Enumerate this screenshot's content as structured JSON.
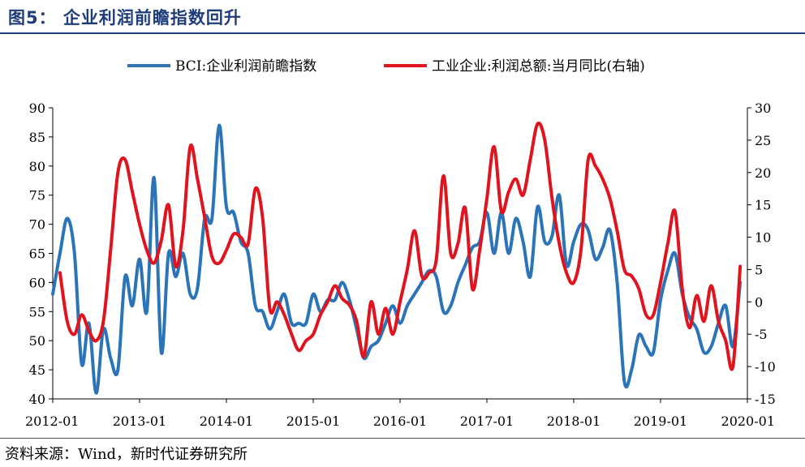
{
  "title": "图5：  企业利润前瞻指数回升",
  "source": "资料来源：Wind，新时代证券研究所",
  "colors": {
    "bci": "#2b74b8",
    "profit": "#e0141e",
    "title": "#1f3d7a"
  },
  "chart_data": {
    "type": "line",
    "legend_position": "top-center",
    "grid": false,
    "x_ticks": [
      "2012-01",
      "2013-01",
      "2014-01",
      "2015-01",
      "2016-01",
      "2017-01",
      "2018-01",
      "2019-01",
      "2020-01"
    ],
    "xlim": [
      "2012-01",
      "2020-01"
    ],
    "y_left": {
      "lim": [
        40,
        90
      ],
      "ticks": [
        40,
        45,
        50,
        55,
        60,
        65,
        70,
        75,
        80,
        85,
        90
      ]
    },
    "y_right": {
      "lim": [
        -15,
        30
      ],
      "ticks": [
        -15,
        -10,
        -5,
        0,
        5,
        10,
        15,
        20,
        25,
        30
      ]
    },
    "series": [
      {
        "name": "BCI:企业利润前瞻指数",
        "axis": "left",
        "color": "#2b74b8",
        "points": [
          [
            "2012-01",
            58
          ],
          [
            "2012-02",
            65
          ],
          [
            "2012-03",
            71
          ],
          [
            "2012-04",
            65
          ],
          [
            "2012-05",
            46
          ],
          [
            "2012-06",
            53
          ],
          [
            "2012-07",
            41
          ],
          [
            "2012-08",
            52
          ],
          [
            "2012-09",
            47
          ],
          [
            "2012-10",
            45
          ],
          [
            "2012-11",
            61
          ],
          [
            "2012-12",
            56
          ],
          [
            "2013-01",
            64
          ],
          [
            "2013-02",
            55
          ],
          [
            "2013-03",
            78
          ],
          [
            "2013-04",
            48
          ],
          [
            "2013-05",
            65
          ],
          [
            "2013-06",
            61
          ],
          [
            "2013-07",
            65
          ],
          [
            "2013-08",
            58
          ],
          [
            "2013-09",
            59
          ],
          [
            "2013-10",
            71
          ],
          [
            "2013-11",
            71
          ],
          [
            "2013-12",
            87
          ],
          [
            "2014-01",
            73
          ],
          [
            "2014-02",
            72
          ],
          [
            "2014-03",
            67
          ],
          [
            "2014-04",
            65
          ],
          [
            "2014-05",
            56
          ],
          [
            "2014-06",
            55
          ],
          [
            "2014-07",
            52
          ],
          [
            "2014-08",
            55
          ],
          [
            "2014-09",
            58
          ],
          [
            "2014-10",
            53
          ],
          [
            "2014-11",
            53
          ],
          [
            "2014-12",
            53
          ],
          [
            "2015-01",
            58
          ],
          [
            "2015-02",
            55
          ],
          [
            "2015-03",
            57
          ],
          [
            "2015-04",
            57
          ],
          [
            "2015-05",
            60
          ],
          [
            "2015-06",
            57
          ],
          [
            "2015-07",
            52
          ],
          [
            "2015-08",
            47
          ],
          [
            "2015-09",
            49
          ],
          [
            "2015-10",
            50
          ],
          [
            "2015-11",
            53
          ],
          [
            "2015-12",
            56
          ],
          [
            "2016-01",
            53
          ],
          [
            "2016-02",
            56
          ],
          [
            "2016-03",
            58
          ],
          [
            "2016-04",
            60
          ],
          [
            "2016-05",
            62
          ],
          [
            "2016-06",
            61
          ],
          [
            "2016-07",
            55
          ],
          [
            "2016-08",
            56
          ],
          [
            "2016-09",
            60
          ],
          [
            "2016-10",
            63
          ],
          [
            "2016-11",
            66
          ],
          [
            "2016-12",
            67
          ],
          [
            "2017-01",
            72
          ],
          [
            "2017-02",
            65
          ],
          [
            "2017-03",
            72
          ],
          [
            "2017-04",
            65
          ],
          [
            "2017-05",
            71
          ],
          [
            "2017-06",
            67
          ],
          [
            "2017-07",
            61
          ],
          [
            "2017-08",
            73
          ],
          [
            "2017-09",
            67
          ],
          [
            "2017-10",
            68
          ],
          [
            "2017-11",
            75
          ],
          [
            "2017-12",
            63
          ],
          [
            "2018-01",
            67
          ],
          [
            "2018-02",
            70
          ],
          [
            "2018-03",
            69
          ],
          [
            "2018-04",
            64
          ],
          [
            "2018-05",
            66
          ],
          [
            "2018-06",
            69
          ],
          [
            "2018-07",
            60
          ],
          [
            "2018-08",
            43
          ],
          [
            "2018-09",
            45
          ],
          [
            "2018-10",
            51
          ],
          [
            "2018-11",
            49
          ],
          [
            "2018-12",
            48
          ],
          [
            "2019-01",
            57
          ],
          [
            "2019-02",
            62
          ],
          [
            "2019-03",
            65
          ],
          [
            "2019-04",
            58
          ],
          [
            "2019-05",
            54
          ],
          [
            "2019-06",
            52
          ],
          [
            "2019-07",
            48
          ],
          [
            "2019-08",
            49
          ],
          [
            "2019-09",
            53
          ],
          [
            "2019-10",
            56
          ],
          [
            "2019-11",
            49
          ],
          [
            "2019-12",
            60
          ]
        ]
      },
      {
        "name": "工业企业:利润总额:当月同比(右轴)",
        "axis": "right",
        "color": "#e0141e",
        "points": [
          [
            "2012-02",
            4.5
          ],
          [
            "2012-03",
            -3
          ],
          [
            "2012-04",
            -5
          ],
          [
            "2012-05",
            -2
          ],
          [
            "2012-06",
            -4.5
          ],
          [
            "2012-07",
            -6
          ],
          [
            "2012-08",
            -3
          ],
          [
            "2012-09",
            8
          ],
          [
            "2012-10",
            20
          ],
          [
            "2012-11",
            22
          ],
          [
            "2012-12",
            17
          ],
          [
            "2013-01",
            12
          ],
          [
            "2013-02",
            8
          ],
          [
            "2013-03",
            6
          ],
          [
            "2013-04",
            9.5
          ],
          [
            "2013-05",
            15
          ],
          [
            "2013-06",
            5.5
          ],
          [
            "2013-07",
            11
          ],
          [
            "2013-08",
            24
          ],
          [
            "2013-09",
            19
          ],
          [
            "2013-10",
            13
          ],
          [
            "2013-11",
            7
          ],
          [
            "2013-12",
            6
          ],
          [
            "2014-01",
            8
          ],
          [
            "2014-02",
            10.5
          ],
          [
            "2014-03",
            10
          ],
          [
            "2014-04",
            9
          ],
          [
            "2014-05",
            17.5
          ],
          [
            "2014-06",
            13
          ],
          [
            "2014-07",
            -1
          ],
          [
            "2014-08",
            0
          ],
          [
            "2014-09",
            -2
          ],
          [
            "2014-10",
            -5
          ],
          [
            "2014-11",
            -7.5
          ],
          [
            "2014-12",
            -6
          ],
          [
            "2015-01",
            -5
          ],
          [
            "2015-02",
            -2
          ],
          [
            "2015-03",
            0
          ],
          [
            "2015-04",
            2.5
          ],
          [
            "2015-05",
            0.5
          ],
          [
            "2015-06",
            -0.5
          ],
          [
            "2015-07",
            -3
          ],
          [
            "2015-08",
            -8.5
          ],
          [
            "2015-09",
            0
          ],
          [
            "2015-10",
            -5
          ],
          [
            "2015-11",
            -1
          ],
          [
            "2015-12",
            -5
          ],
          [
            "2016-01",
            0
          ],
          [
            "2016-02",
            5
          ],
          [
            "2016-03",
            11
          ],
          [
            "2016-04",
            4
          ],
          [
            "2016-05",
            4.5
          ],
          [
            "2016-06",
            6.5
          ],
          [
            "2016-07",
            19.5
          ],
          [
            "2016-08",
            7.5
          ],
          [
            "2016-09",
            9
          ],
          [
            "2016-10",
            14.5
          ],
          [
            "2016-11",
            2
          ],
          [
            "2016-12",
            8
          ],
          [
            "2017-01",
            16
          ],
          [
            "2017-02",
            24
          ],
          [
            "2017-03",
            14
          ],
          [
            "2017-04",
            17
          ],
          [
            "2017-05",
            19
          ],
          [
            "2017-06",
            16.5
          ],
          [
            "2017-07",
            22
          ],
          [
            "2017-08",
            27.5
          ],
          [
            "2017-09",
            25
          ],
          [
            "2017-10",
            16
          ],
          [
            "2017-11",
            9
          ],
          [
            "2017-12",
            4.5
          ],
          [
            "2018-01",
            3
          ],
          [
            "2018-02",
            8
          ],
          [
            "2018-03",
            22
          ],
          [
            "2018-04",
            21
          ],
          [
            "2018-05",
            19
          ],
          [
            "2018-06",
            16
          ],
          [
            "2018-07",
            11
          ],
          [
            "2018-08",
            5
          ],
          [
            "2018-09",
            4
          ],
          [
            "2018-10",
            2
          ],
          [
            "2018-11",
            -2
          ],
          [
            "2018-12",
            -2
          ],
          [
            "2019-01",
            3
          ],
          [
            "2019-02",
            9
          ],
          [
            "2019-03",
            14
          ],
          [
            "2019-04",
            2
          ],
          [
            "2019-05",
            -4
          ],
          [
            "2019-06",
            1
          ],
          [
            "2019-07",
            -3
          ],
          [
            "2019-08",
            2.5
          ],
          [
            "2019-09",
            -3
          ],
          [
            "2019-10",
            -6
          ],
          [
            "2019-11",
            -10
          ],
          [
            "2019-12",
            5.5
          ]
        ]
      }
    ]
  }
}
